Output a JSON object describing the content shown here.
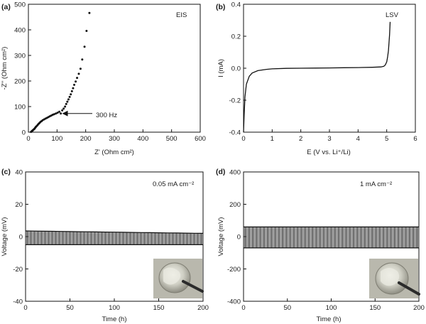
{
  "chart_data": [
    {
      "id": "a",
      "type": "scatter",
      "panel_label": "(a)",
      "annotation": "EIS",
      "xlabel": "Z' (Ohm cm²)",
      "ylabel": "-Z'' (Ohm cm²)",
      "xlim": [
        0,
        600
      ],
      "ylim": [
        0,
        500
      ],
      "xticks": [
        0,
        100,
        200,
        300,
        400,
        500,
        600
      ],
      "yticks": [
        0,
        100,
        200,
        300,
        400,
        500
      ],
      "arrow_label": "300 Hz",
      "arrow_target": [
        113,
        73
      ],
      "series": [
        {
          "x": [
            9,
            11,
            13,
            15,
            17,
            19,
            21,
            23,
            25,
            27,
            30,
            33,
            36,
            39,
            42,
            46,
            50,
            55,
            60,
            65,
            70,
            75,
            80,
            85,
            90,
            96,
            102,
            108,
            113,
            118,
            123,
            128,
            132,
            136,
            140,
            144,
            148,
            152,
            156,
            160,
            165,
            170,
            176,
            182,
            188,
            196,
            203,
            213
          ],
          "y": [
            1,
            3,
            5,
            7,
            9,
            11,
            13,
            16,
            19,
            22,
            25,
            29,
            33,
            36,
            40,
            43,
            47,
            50,
            53,
            56,
            59,
            62,
            65,
            68,
            70,
            73,
            76,
            80,
            73,
            85,
            92,
            100,
            110,
            119,
            128,
            138,
            148,
            160,
            172,
            185,
            198,
            212,
            228,
            248,
            284,
            334,
            396,
            466
          ]
        }
      ]
    },
    {
      "id": "b",
      "type": "line",
      "panel_label": "(b)",
      "annotation": "LSV",
      "xlabel": "E (V vs. Li⁺/Li)",
      "ylabel": "I (mA)",
      "xlim": [
        0,
        6
      ],
      "ylim": [
        -0.4,
        0.4
      ],
      "xticks": [
        0,
        1,
        2,
        3,
        4,
        5,
        6
      ],
      "yticks": [
        -0.4,
        -0.2,
        0.0,
        0.2,
        0.4
      ],
      "ytick_labels": [
        "-0.4",
        "-0.2",
        "0.0",
        "0.2",
        "0.4"
      ],
      "series": [
        {
          "x": [
            0.0,
            0.02,
            0.05,
            0.1,
            0.2,
            0.3,
            0.5,
            0.8,
            1.0,
            1.5,
            2.0,
            2.5,
            3.0,
            3.5,
            4.0,
            4.5,
            4.8,
            4.9,
            4.95,
            5.0,
            5.03,
            5.06,
            5.08,
            5.1,
            5.12
          ],
          "y": [
            -0.4,
            -0.3,
            -0.18,
            -0.1,
            -0.05,
            -0.03,
            -0.015,
            -0.007,
            -0.004,
            -0.001,
            0.0,
            0.001,
            0.002,
            0.003,
            0.004,
            0.006,
            0.008,
            0.012,
            0.02,
            0.04,
            0.07,
            0.11,
            0.16,
            0.21,
            0.29
          ]
        }
      ]
    },
    {
      "id": "c",
      "type": "line",
      "panel_label": "(c)",
      "annotation": "0.05 mA cm⁻²",
      "xlabel": "Time (h)",
      "ylabel": "Voltage (mV)",
      "xlim": [
        0,
        200
      ],
      "ylim": [
        -40,
        40
      ],
      "xticks": [
        0,
        50,
        100,
        150,
        200
      ],
      "yticks": [
        -40,
        -20,
        0,
        20,
        40
      ],
      "cycles": 100,
      "upper_start": 3.5,
      "upper_end": 2.0,
      "lower_start": -5.0,
      "lower_end": -5.0,
      "series": []
    },
    {
      "id": "d",
      "type": "line",
      "panel_label": "(d)",
      "annotation": "1 mA cm⁻²",
      "xlabel": "Time (h)",
      "ylabel": "Voltage (mV)",
      "xlim": [
        0,
        200
      ],
      "ylim": [
        -400,
        400
      ],
      "xticks": [
        0,
        50,
        100,
        150,
        200
      ],
      "yticks": [
        -400,
        -200,
        0,
        200,
        400
      ],
      "cycles": 100,
      "upper_start": 60,
      "upper_end": 60,
      "lower_start": -70,
      "lower_end": -70,
      "series": []
    }
  ],
  "colors": {
    "ink": "#111111",
    "photo_bg": "#b9b8ad",
    "disc": "#dcdcd2"
  },
  "icons": [
    "arrow-icon",
    "photo-inset-disc"
  ]
}
